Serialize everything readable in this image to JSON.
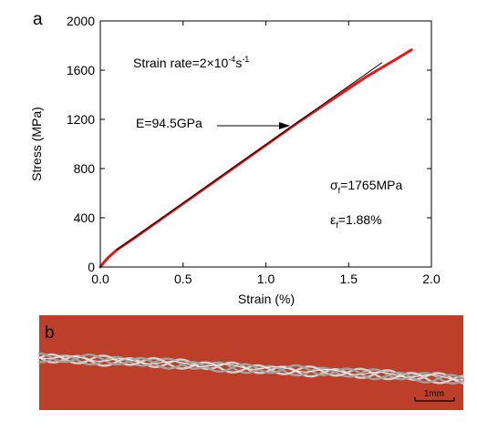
{
  "panel_a_label": "a",
  "panel_b_label": "b",
  "annotations": {
    "strain_rate_prefix": "Strain rate=2×10",
    "strain_rate_exp": "-4",
    "strain_rate_unit": "s",
    "strain_rate_unit_exp": "-1",
    "modulus": "E=94.5GPa",
    "sigma_sym": "σ",
    "sigma_sub": "f",
    "sigma_val": "=1765MPa",
    "eps_sym": "ε",
    "eps_sub": "f",
    "eps_val": "=1.88%"
  },
  "photo": {
    "scale_bar_label": "1mm",
    "background_color": "#c8452f",
    "wire_color": "#cfd2cf"
  },
  "chart_data": {
    "type": "line",
    "xlabel": "Strain (%)",
    "ylabel": "Stress (MPa)",
    "xlim": [
      0,
      2.0
    ],
    "ylim": [
      0,
      2000
    ],
    "xticks": [
      0.0,
      0.5,
      1.0,
      1.5,
      2.0
    ],
    "xtick_labels": [
      "0.0",
      "0.5",
      "1.0",
      "1.5",
      "2.0"
    ],
    "yticks": [
      0,
      400,
      800,
      1200,
      1600,
      2000
    ],
    "ytick_labels": [
      "0",
      "400",
      "800",
      "1200",
      "1600",
      "2000"
    ],
    "grid": false,
    "series": [
      {
        "color": "#e8161a",
        "x": [
          0.0,
          0.02,
          0.05,
          0.1,
          0.2,
          0.4,
          0.6,
          0.8,
          1.0,
          1.2,
          1.4,
          1.6,
          1.8,
          1.88
        ],
        "y": [
          0,
          35,
          80,
          140,
          230,
          420,
          610,
          800,
          990,
          1180,
          1360,
          1540,
          1700,
          1765
        ]
      },
      {
        "color": "#000000",
        "x": [
          0.1,
          1.7
        ],
        "y": [
          140,
          1660
        ]
      }
    ],
    "arrow_target": {
      "x": 1.15,
      "y": 1130
    }
  }
}
